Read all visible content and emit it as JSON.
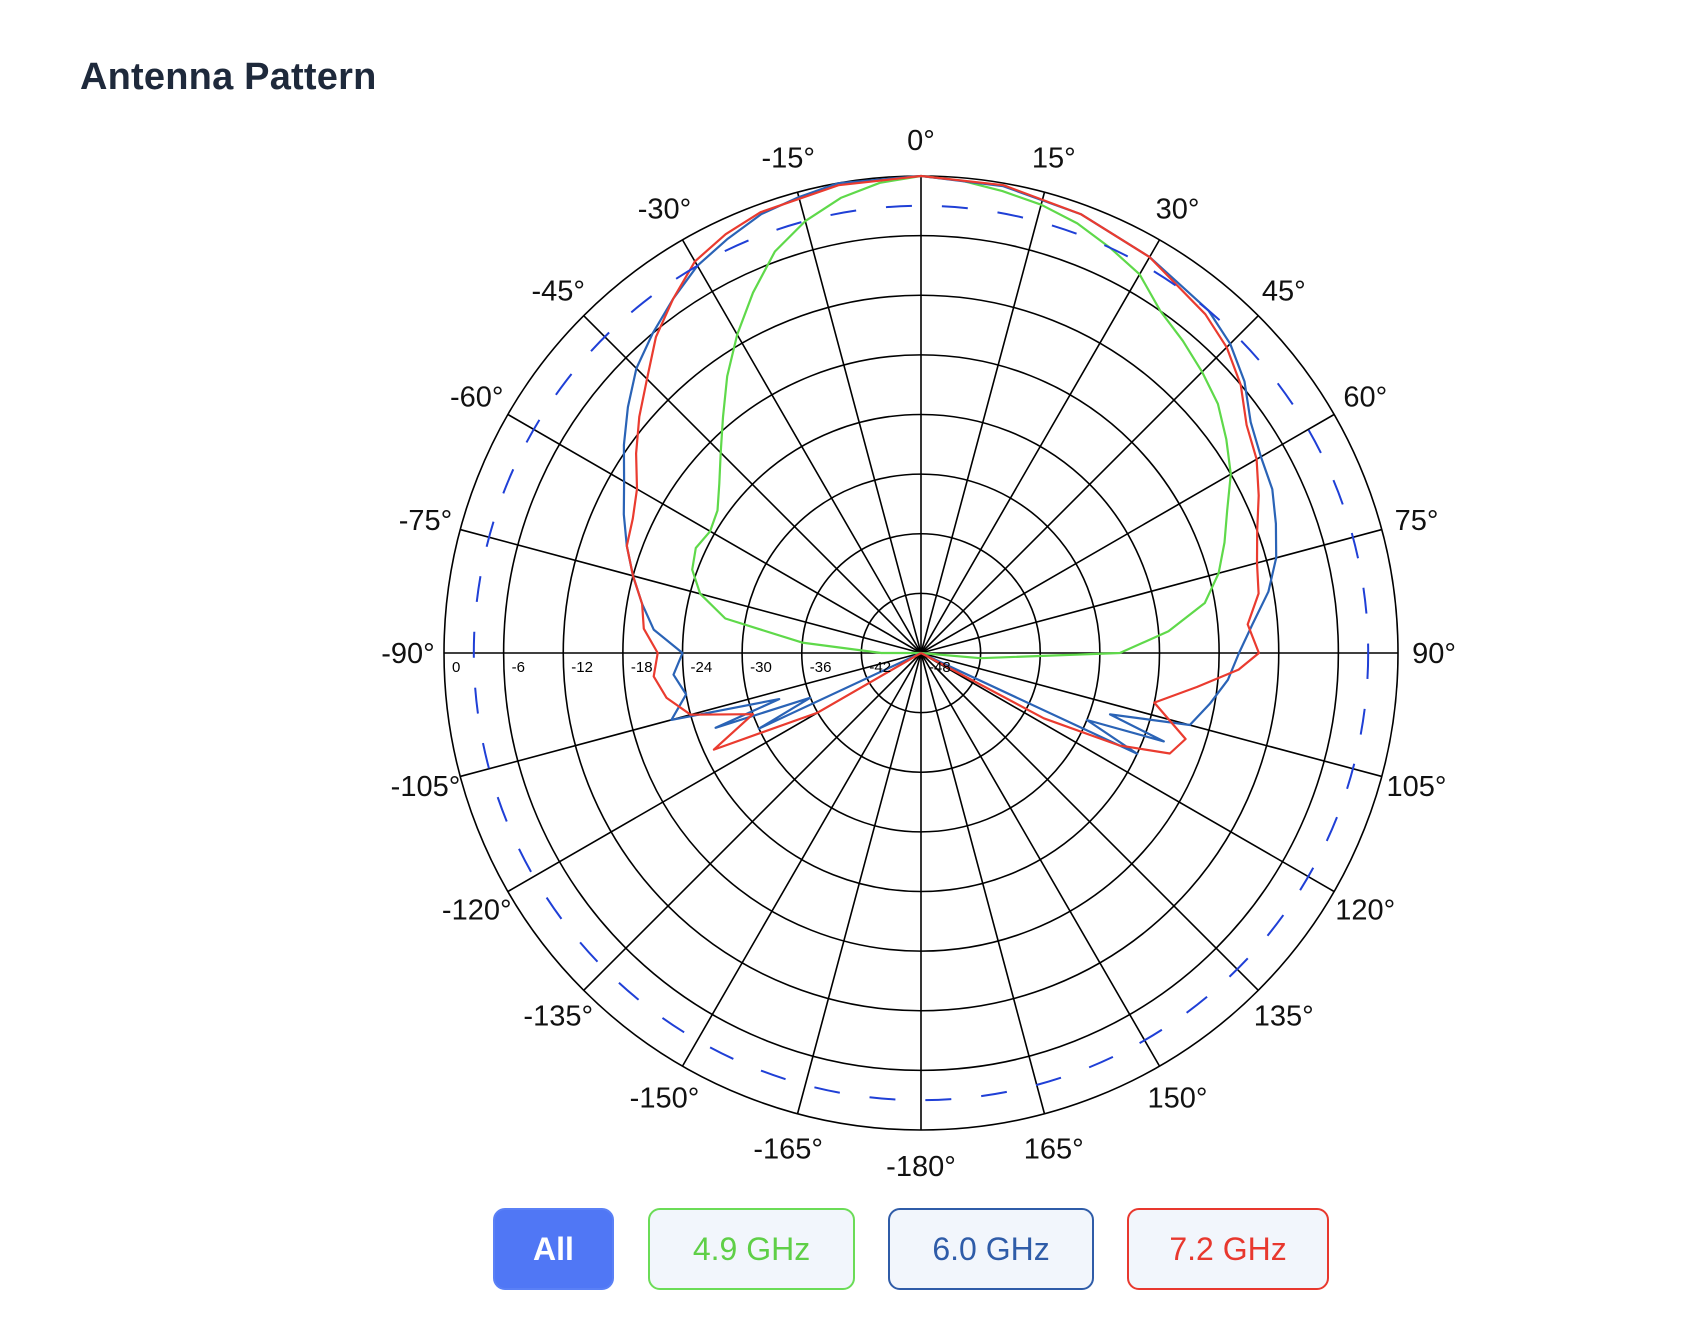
{
  "page": {
    "title": "Antenna Pattern"
  },
  "filters": {
    "all_label": "All",
    "f49_label": "4.9 GHz",
    "f60_label": "6.0 GHz",
    "f72_label": "7.2 GHz"
  },
  "chart_data": {
    "type": "polar",
    "title": "",
    "angle_unit": "deg",
    "angle_labels": [
      "0°",
      "15°",
      "30°",
      "45°",
      "60°",
      "75°",
      "90°",
      "105°",
      "120°",
      "135°",
      "150°",
      "165°",
      "-180°",
      "-165°",
      "-150°",
      "-135°",
      "-120°",
      "-105°",
      "-90°",
      "-75°",
      "-60°",
      "-45°",
      "-30°",
      "-15°"
    ],
    "angle_values": [
      0,
      15,
      30,
      45,
      60,
      75,
      90,
      105,
      120,
      135,
      150,
      165,
      180,
      -165,
      -150,
      -135,
      -120,
      -105,
      -90,
      -75,
      -60,
      -45,
      -30,
      -15
    ],
    "radial_unit": "dB",
    "radial_range": [
      -48,
      0
    ],
    "radial_tick_labels": [
      "0",
      "-6",
      "-12",
      "-18",
      "-24",
      "-30",
      "-36",
      "-42",
      "-48"
    ],
    "radial_ticks": [
      0,
      -6,
      -12,
      -18,
      -24,
      -30,
      -36,
      -42,
      -48
    ],
    "grid": true,
    "series": [
      {
        "name": "4.9 GHz",
        "color": "#5fd94a",
        "style": "solid",
        "points": [
          [
            -90,
            -44
          ],
          [
            -85,
            -36
          ],
          [
            -80,
            -28
          ],
          [
            -75,
            -25
          ],
          [
            -70,
            -23.5
          ],
          [
            -65,
            -23
          ],
          [
            -60,
            -23.5
          ],
          [
            -55,
            -23
          ],
          [
            -50,
            -21.5
          ],
          [
            -45,
            -19.5
          ],
          [
            -40,
            -17
          ],
          [
            -35,
            -14
          ],
          [
            -30,
            -11
          ],
          [
            -25,
            -8
          ],
          [
            -20,
            -5
          ],
          [
            -15,
            -3
          ],
          [
            -10,
            -1.5
          ],
          [
            -5,
            -0.5
          ],
          [
            0,
            0
          ],
          [
            5,
            -0.3
          ],
          [
            10,
            -0.8
          ],
          [
            15,
            -1.3
          ],
          [
            20,
            -2
          ],
          [
            25,
            -3
          ],
          [
            30,
            -4
          ],
          [
            35,
            -6
          ],
          [
            40,
            -7
          ],
          [
            45,
            -8
          ],
          [
            50,
            -9
          ],
          [
            55,
            -10.5
          ],
          [
            60,
            -12
          ],
          [
            65,
            -14
          ],
          [
            70,
            -15.5
          ],
          [
            75,
            -17
          ],
          [
            80,
            -19
          ],
          [
            85,
            -23
          ],
          [
            90,
            -28
          ],
          [
            95,
            -42
          ]
        ]
      },
      {
        "name": "6.0 GHz",
        "color": "#2a63b6",
        "style": "solid",
        "points": [
          [
            -115,
            -30
          ],
          [
            -112,
            -36
          ],
          [
            -110,
            -26
          ],
          [
            -108,
            -33
          ],
          [
            -105,
            -22
          ],
          [
            -100,
            -24
          ],
          [
            -95,
            -23
          ],
          [
            -90,
            -24
          ],
          [
            -85,
            -21
          ],
          [
            -80,
            -19.5
          ],
          [
            -75,
            -18
          ],
          [
            -70,
            -16.5
          ],
          [
            -65,
            -15
          ],
          [
            -60,
            -13.5
          ],
          [
            -55,
            -11.5
          ],
          [
            -50,
            -9.5
          ],
          [
            -45,
            -7.5
          ],
          [
            -40,
            -6
          ],
          [
            -35,
            -4.5
          ],
          [
            -30,
            -3
          ],
          [
            -25,
            -2
          ],
          [
            -20,
            -1
          ],
          [
            -15,
            -0.5
          ],
          [
            -10,
            0
          ],
          [
            0,
            0
          ],
          [
            10,
            -0.3
          ],
          [
            20,
            -1
          ],
          [
            30,
            -2
          ],
          [
            40,
            -3
          ],
          [
            45,
            -4
          ],
          [
            50,
            -5.5
          ],
          [
            55,
            -7.5
          ],
          [
            60,
            -8.5
          ],
          [
            65,
            -9
          ],
          [
            70,
            -10
          ],
          [
            75,
            -11
          ],
          [
            80,
            -12.5
          ],
          [
            85,
            -14.5
          ],
          [
            90,
            -16
          ],
          [
            95,
            -17
          ],
          [
            100,
            -18.5
          ],
          [
            105,
            -20
          ],
          [
            108,
            -28
          ],
          [
            110,
            -22
          ],
          [
            112,
            -30
          ],
          [
            115,
            -24
          ]
        ]
      },
      {
        "name": "7.2 GHz",
        "color": "#ea3b2f",
        "style": "solid",
        "points": [
          [
            -120,
            -36
          ],
          [
            -115,
            -25
          ],
          [
            -110,
            -30
          ],
          [
            -105,
            -24
          ],
          [
            -100,
            -22
          ],
          [
            -95,
            -21
          ],
          [
            -90,
            -21.5
          ],
          [
            -85,
            -20
          ],
          [
            -80,
            -19.5
          ],
          [
            -75,
            -18
          ],
          [
            -70,
            -16.5
          ],
          [
            -65,
            -16
          ],
          [
            -60,
            -15
          ],
          [
            -55,
            -13
          ],
          [
            -50,
            -11
          ],
          [
            -45,
            -9
          ],
          [
            -40,
            -6.5
          ],
          [
            -35,
            -4.5
          ],
          [
            -30,
            -2.5
          ],
          [
            -25,
            -1.5
          ],
          [
            -20,
            -0.8
          ],
          [
            -10,
            -0.2
          ],
          [
            0,
            0
          ],
          [
            10,
            -0.2
          ],
          [
            20,
            -1
          ],
          [
            30,
            -2
          ],
          [
            40,
            -3.5
          ],
          [
            45,
            -4.5
          ],
          [
            50,
            -6
          ],
          [
            55,
            -8
          ],
          [
            60,
            -9
          ],
          [
            65,
            -10.5
          ],
          [
            70,
            -12
          ],
          [
            75,
            -13
          ],
          [
            80,
            -13.5
          ],
          [
            85,
            -15
          ],
          [
            90,
            -14
          ],
          [
            93,
            -16
          ],
          [
            97,
            -20
          ],
          [
            102,
            -24
          ],
          [
            108,
            -20
          ],
          [
            112,
            -21
          ],
          [
            115,
            -26
          ],
          [
            118,
            -34
          ]
        ]
      },
      {
        "name": "",
        "color": "#1f3fd6",
        "style": "dashed",
        "constant_db": -3,
        "angle_range": [
          -180,
          180
        ]
      }
    ],
    "legend": "buttons-bottom"
  }
}
